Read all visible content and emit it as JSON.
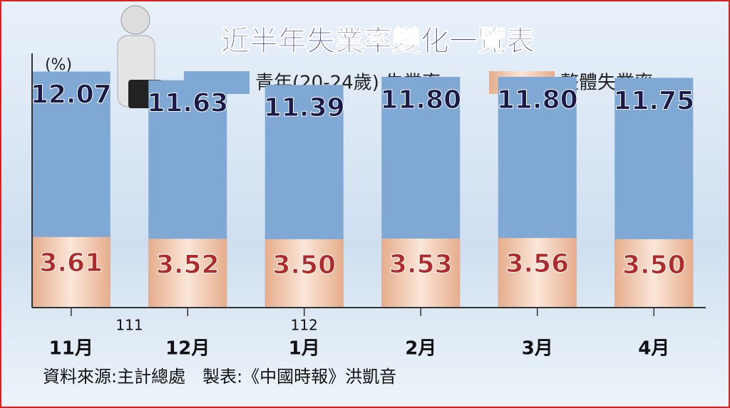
{
  "chart_data": {
    "type": "bar",
    "title": "近半年失業率變化一覽表",
    "y_label": "(%)",
    "categories": [
      "11月",
      "12月",
      "1月",
      "2月",
      "3月",
      "4月"
    ],
    "year_labels": [
      "111",
      "112"
    ],
    "series": [
      {
        "name": "青年(20-24歲) 失業率",
        "color": "#7fa9d4",
        "values": [
          12.07,
          11.63,
          11.39,
          11.8,
          11.8,
          11.75
        ],
        "value_labels": [
          "12.07",
          "11.63",
          "11.39",
          "11.80",
          "11.80",
          "11.75"
        ]
      },
      {
        "name": "整體失業率",
        "color": "#f0c6ad",
        "values": [
          3.61,
          3.52,
          3.5,
          3.53,
          3.56,
          3.5
        ],
        "value_labels": [
          "3.61",
          "3.52",
          "3.50",
          "3.53",
          "3.56",
          "3.50"
        ]
      }
    ],
    "ylim": [
      0,
      13
    ],
    "source": "資料來源:主計總處　製表:《中國時報》洪凱音"
  }
}
